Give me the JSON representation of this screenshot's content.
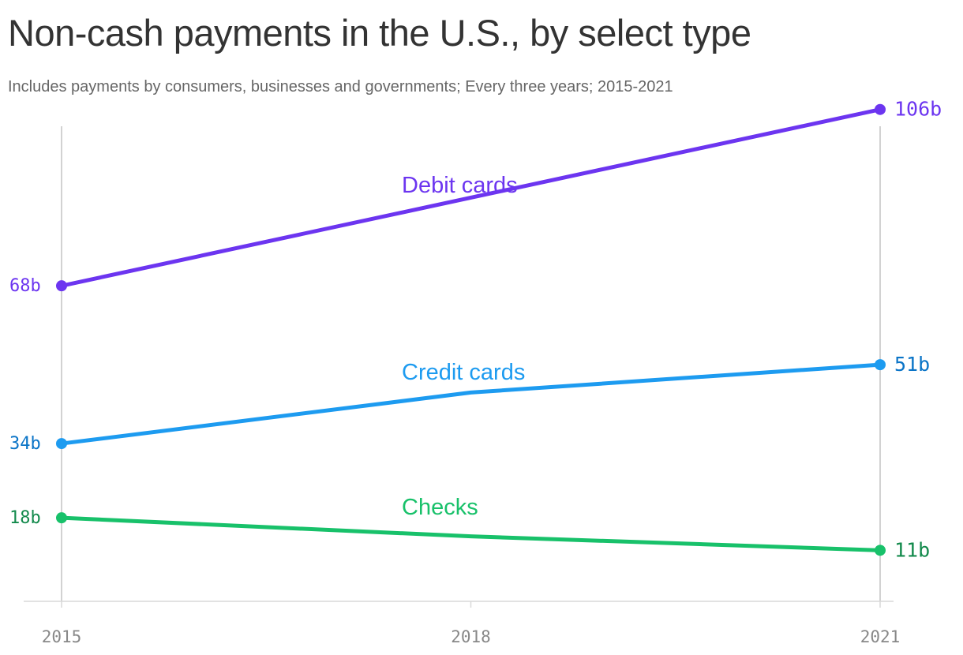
{
  "title": "Non-cash payments in the U.S., by select type",
  "subtitle": "Includes payments by consumers, businesses and governments; Every three years; 2015-2021",
  "chart_data": {
    "type": "line",
    "title": "Non-cash payments in the U.S., by select type",
    "subtitle": "Includes payments by consumers, businesses and governments; Every three years; 2015-2021",
    "x": [
      2015,
      2018,
      2021
    ],
    "x_tick_labels": [
      "2015",
      "2018",
      "2021"
    ],
    "ylim": [
      0,
      106
    ],
    "grid": false,
    "series": [
      {
        "name": "Debit cards",
        "values": [
          68,
          87,
          106
        ],
        "start_label": "68b",
        "end_label": "106b",
        "color": "#6c35f0",
        "label_color": "#6c35f0"
      },
      {
        "name": "Credit cards",
        "values": [
          34,
          45,
          51
        ],
        "start_label": "34b",
        "end_label": "51b",
        "color": "#1d9bf0",
        "label_color": "#0a74c7"
      },
      {
        "name": "Checks",
        "values": [
          18,
          14,
          11
        ],
        "start_label": "18b",
        "end_label": "11b",
        "color": "#18c16a",
        "label_color": "#138a4c"
      }
    ]
  }
}
